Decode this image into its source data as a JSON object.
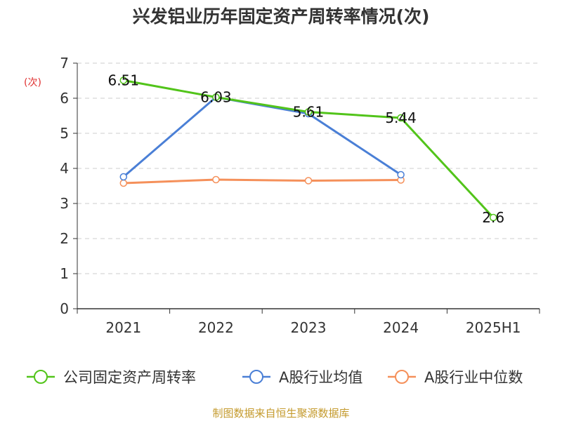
{
  "chart_data": {
    "type": "line",
    "title": "兴发铝业历年固定资产周转率情况(次)",
    "ylabel": "(次)",
    "xlabel": "",
    "categories": [
      "2021",
      "2022",
      "2023",
      "2024",
      "2025H1"
    ],
    "yticks": [
      "0",
      "1",
      "2",
      "3",
      "4",
      "5",
      "6",
      "7"
    ],
    "ylim": [
      0,
      7
    ],
    "grid": true,
    "legend_position": "bottom",
    "series": [
      {
        "name": "公司固定资产周转率",
        "color": "#52c41a",
        "values": [
          6.51,
          6.03,
          5.61,
          5.44,
          2.6
        ],
        "labels": [
          "6.51",
          "6.03",
          "5.61",
          "5.44",
          "2.6"
        ]
      },
      {
        "name": "A股行业均值",
        "color": "#4a7fd6",
        "values": [
          3.76,
          6.03,
          5.56,
          3.82,
          null
        ]
      },
      {
        "name": "A股行业中位数",
        "color": "#f5905a",
        "values": [
          3.58,
          3.68,
          3.65,
          3.67,
          null
        ]
      }
    ]
  },
  "source": "制图数据来自恒生聚源数据库"
}
